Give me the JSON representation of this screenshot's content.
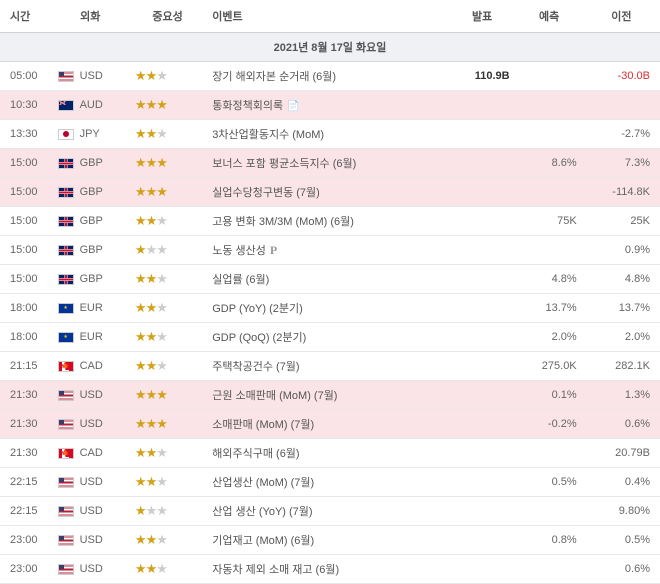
{
  "headers": {
    "time": "시간",
    "currency": "외화",
    "importance": "중요성",
    "event": "이벤트",
    "actual": "발표",
    "forecast": "예측",
    "previous": "이전"
  },
  "date_label": "2021년 8월 17일 화요일",
  "rows": [
    {
      "time": "05:00",
      "currency": "USD",
      "stars": 2,
      "event": "장기 해외자본 순거래 (6월)",
      "actual": "110.9B",
      "forecast": "",
      "previous": "-30.0B",
      "prev_negative": true,
      "highlighted": false
    },
    {
      "time": "10:30",
      "currency": "AUD",
      "stars": 3,
      "event": "통화정책회의록",
      "actual": "",
      "forecast": "",
      "previous": "",
      "highlighted": true,
      "has_doc": true
    },
    {
      "time": "13:30",
      "currency": "JPY",
      "stars": 2,
      "event": "3차산업활동지수 (MoM)",
      "actual": "",
      "forecast": "",
      "previous": "-2.7%",
      "highlighted": false
    },
    {
      "time": "15:00",
      "currency": "GBP",
      "stars": 3,
      "event": "보너스 포함 평균소득지수 (6월)",
      "actual": "",
      "forecast": "8.6%",
      "previous": "7.3%",
      "highlighted": true
    },
    {
      "time": "15:00",
      "currency": "GBP",
      "stars": 3,
      "event": "실업수당청구변동 (7월)",
      "actual": "",
      "forecast": "",
      "previous": "-114.8K",
      "highlighted": true
    },
    {
      "time": "15:00",
      "currency": "GBP",
      "stars": 2,
      "event": "고용 변화 3M/3M (MoM) (6월)",
      "actual": "",
      "forecast": "75K",
      "previous": "25K",
      "highlighted": false
    },
    {
      "time": "15:00",
      "currency": "GBP",
      "stars": 1,
      "event": "노동 생산성",
      "actual": "",
      "forecast": "",
      "previous": "0.9%",
      "highlighted": false,
      "has_p": true
    },
    {
      "time": "15:00",
      "currency": "GBP",
      "stars": 2,
      "event": "실업률 (6월)",
      "actual": "",
      "forecast": "4.8%",
      "previous": "4.8%",
      "highlighted": false
    },
    {
      "time": "18:00",
      "currency": "EUR",
      "stars": 2,
      "event": "GDP (YoY) (2분기)",
      "actual": "",
      "forecast": "13.7%",
      "previous": "13.7%",
      "highlighted": false
    },
    {
      "time": "18:00",
      "currency": "EUR",
      "stars": 2,
      "event": "GDP (QoQ) (2분기)",
      "actual": "",
      "forecast": "2.0%",
      "previous": "2.0%",
      "highlighted": false
    },
    {
      "time": "21:15",
      "currency": "CAD",
      "stars": 2,
      "event": "주택착공건수 (7월)",
      "actual": "",
      "forecast": "275.0K",
      "previous": "282.1K",
      "highlighted": false
    },
    {
      "time": "21:30",
      "currency": "USD",
      "stars": 3,
      "event": "근원 소매판매 (MoM) (7월)",
      "actual": "",
      "forecast": "0.1%",
      "previous": "1.3%",
      "highlighted": true
    },
    {
      "time": "21:30",
      "currency": "USD",
      "stars": 3,
      "event": "소매판매 (MoM) (7월)",
      "actual": "",
      "forecast": "-0.2%",
      "previous": "0.6%",
      "highlighted": true
    },
    {
      "time": "21:30",
      "currency": "CAD",
      "stars": 2,
      "event": "해외주식구매 (6월)",
      "actual": "",
      "forecast": "",
      "previous": "20.79B",
      "highlighted": false
    },
    {
      "time": "22:15",
      "currency": "USD",
      "stars": 2,
      "event": "산업생산 (MoM) (7월)",
      "actual": "",
      "forecast": "0.5%",
      "previous": "0.4%",
      "highlighted": false
    },
    {
      "time": "22:15",
      "currency": "USD",
      "stars": 1,
      "event": "산업 생산 (YoY) (7월)",
      "actual": "",
      "forecast": "",
      "previous": "9.80%",
      "highlighted": false
    },
    {
      "time": "23:00",
      "currency": "USD",
      "stars": 2,
      "event": "기업재고 (MoM) (6월)",
      "actual": "",
      "forecast": "0.8%",
      "previous": "0.5%",
      "highlighted": false
    },
    {
      "time": "23:00",
      "currency": "USD",
      "stars": 2,
      "event": "자동차 제외 소매 재고 (6월)",
      "actual": "",
      "forecast": "",
      "previous": "0.6%",
      "highlighted": false
    }
  ]
}
